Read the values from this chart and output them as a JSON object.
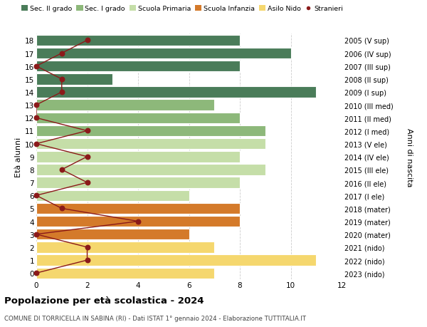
{
  "ages": [
    18,
    17,
    16,
    15,
    14,
    13,
    12,
    11,
    10,
    9,
    8,
    7,
    6,
    5,
    4,
    3,
    2,
    1,
    0
  ],
  "years": [
    "2005 (V sup)",
    "2006 (IV sup)",
    "2007 (III sup)",
    "2008 (II sup)",
    "2009 (I sup)",
    "2010 (III med)",
    "2011 (II med)",
    "2012 (I med)",
    "2013 (V ele)",
    "2014 (IV ele)",
    "2015 (III ele)",
    "2016 (II ele)",
    "2017 (I ele)",
    "2018 (mater)",
    "2019 (mater)",
    "2020 (mater)",
    "2021 (nido)",
    "2022 (nido)",
    "2023 (nido)"
  ],
  "bar_values": [
    8,
    10,
    8,
    3,
    11,
    7,
    8,
    9,
    9,
    8,
    9,
    8,
    6,
    8,
    8,
    6,
    7,
    11,
    7
  ],
  "bar_colors": [
    "#4a7c59",
    "#4a7c59",
    "#4a7c59",
    "#4a7c59",
    "#4a7c59",
    "#8db87a",
    "#8db87a",
    "#8db87a",
    "#c5dea8",
    "#c5dea8",
    "#c5dea8",
    "#c5dea8",
    "#c5dea8",
    "#d47a2a",
    "#d47a2a",
    "#d47a2a",
    "#f5d76e",
    "#f5d76e",
    "#f5d76e"
  ],
  "stranieri_values": [
    2,
    1,
    0,
    1,
    1,
    0,
    0,
    2,
    0,
    2,
    1,
    2,
    0,
    1,
    4,
    0,
    2,
    2,
    0
  ],
  "stranieri_color": "#8b1a1a",
  "stranieri_line_color": "#8b1a1a",
  "legend_labels": [
    "Sec. II grado",
    "Sec. I grado",
    "Scuola Primaria",
    "Scuola Infanzia",
    "Asilo Nido",
    "Stranieri"
  ],
  "legend_colors": [
    "#4a7c59",
    "#8db87a",
    "#c5dea8",
    "#d47a2a",
    "#f5d76e",
    "#8b1a1a"
  ],
  "title": "Popolazione per età scolastica - 2024",
  "subtitle": "COMUNE DI TORRICELLA IN SABINA (RI) - Dati ISTAT 1° gennaio 2024 - Elaborazione TUTTITALIA.IT",
  "ylabel": "Età alunni",
  "ylabel_right": "Anni di nascita",
  "xlim": [
    0,
    12
  ],
  "background_color": "#ffffff",
  "grid_color": "#cccccc",
  "bar_edge_color": "#ffffff"
}
